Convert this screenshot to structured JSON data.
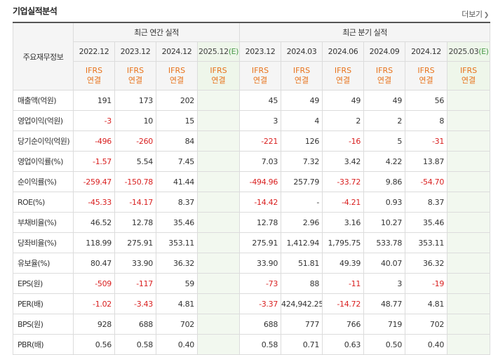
{
  "section_title": "기업실적분석",
  "more_label": "더보기",
  "header": {
    "corner_label": "주요재무정보",
    "annual_group": "최근 연간 실적",
    "quarter_group": "최근 분기 실적",
    "annual_periods": [
      "2022.12",
      "2023.12",
      "2024.12",
      "2025.12"
    ],
    "annual_est_suffix": "(E)",
    "quarter_periods": [
      "2023.12",
      "2024.03",
      "2024.06",
      "2024.09",
      "2024.12",
      "2025.03"
    ],
    "quarter_est_suffix": "(E)",
    "ifrs_line1": "IFRS",
    "ifrs_line2": "연결"
  },
  "rows": [
    {
      "label": "매출액(억원)",
      "annual": [
        "191",
        "173",
        "202",
        ""
      ],
      "quarter": [
        "45",
        "49",
        "49",
        "49",
        "56",
        ""
      ]
    },
    {
      "label": "영업이익(억원)",
      "annual": [
        "-3",
        "10",
        "15",
        ""
      ],
      "quarter": [
        "3",
        "4",
        "2",
        "2",
        "8",
        ""
      ]
    },
    {
      "label": "당기순이익(억원)",
      "annual": [
        "-496",
        "-260",
        "84",
        ""
      ],
      "quarter": [
        "-221",
        "126",
        "-16",
        "5",
        "-31",
        ""
      ]
    },
    {
      "label": "영업이익률(%)",
      "annual": [
        "-1.57",
        "5.54",
        "7.45",
        ""
      ],
      "quarter": [
        "7.03",
        "7.32",
        "3.42",
        "4.22",
        "13.87",
        ""
      ]
    },
    {
      "label": "순이익률(%)",
      "annual": [
        "-259.47",
        "-150.78",
        "41.44",
        ""
      ],
      "quarter": [
        "-494.96",
        "257.79",
        "-33.72",
        "9.86",
        "-54.70",
        ""
      ]
    },
    {
      "label": "ROE(%)",
      "annual": [
        "-45.33",
        "-14.17",
        "8.37",
        ""
      ],
      "quarter": [
        "-14.42",
        "-",
        "-4.21",
        "0.93",
        "8.37",
        ""
      ]
    },
    {
      "label": "부채비율(%)",
      "annual": [
        "46.52",
        "12.78",
        "35.46",
        ""
      ],
      "quarter": [
        "12.78",
        "2.96",
        "3.16",
        "10.27",
        "35.46",
        ""
      ]
    },
    {
      "label": "당좌비율(%)",
      "annual": [
        "118.99",
        "275.91",
        "353.11",
        ""
      ],
      "quarter": [
        "275.91",
        "1,412.94",
        "1,795.75",
        "533.78",
        "353.11",
        ""
      ]
    },
    {
      "label": "유보율(%)",
      "annual": [
        "80.47",
        "33.90",
        "36.32",
        ""
      ],
      "quarter": [
        "33.90",
        "51.81",
        "49.39",
        "40.07",
        "36.32",
        ""
      ]
    },
    {
      "label": "EPS(원)",
      "annual": [
        "-509",
        "-117",
        "59",
        ""
      ],
      "quarter": [
        "-73",
        "88",
        "-11",
        "3",
        "-19",
        ""
      ]
    },
    {
      "label": "PER(배)",
      "annual": [
        "-1.02",
        "-3.43",
        "4.81",
        ""
      ],
      "quarter": [
        "-3.37",
        "424,942.25",
        "-14.72",
        "48.77",
        "4.81",
        ""
      ]
    },
    {
      "label": "BPS(원)",
      "annual": [
        "928",
        "688",
        "702",
        ""
      ],
      "quarter": [
        "688",
        "777",
        "766",
        "719",
        "702",
        ""
      ]
    },
    {
      "label": "PBR(배)",
      "annual": [
        "0.56",
        "0.58",
        "0.40",
        ""
      ],
      "quarter": [
        "0.58",
        "0.71",
        "0.63",
        "0.50",
        "0.40",
        ""
      ]
    }
  ],
  "colors": {
    "negative": "#d92020",
    "ifrs": "#e8731b",
    "estimate_bg": "#f2f8ef",
    "header_bg": "#f5f5f5"
  }
}
